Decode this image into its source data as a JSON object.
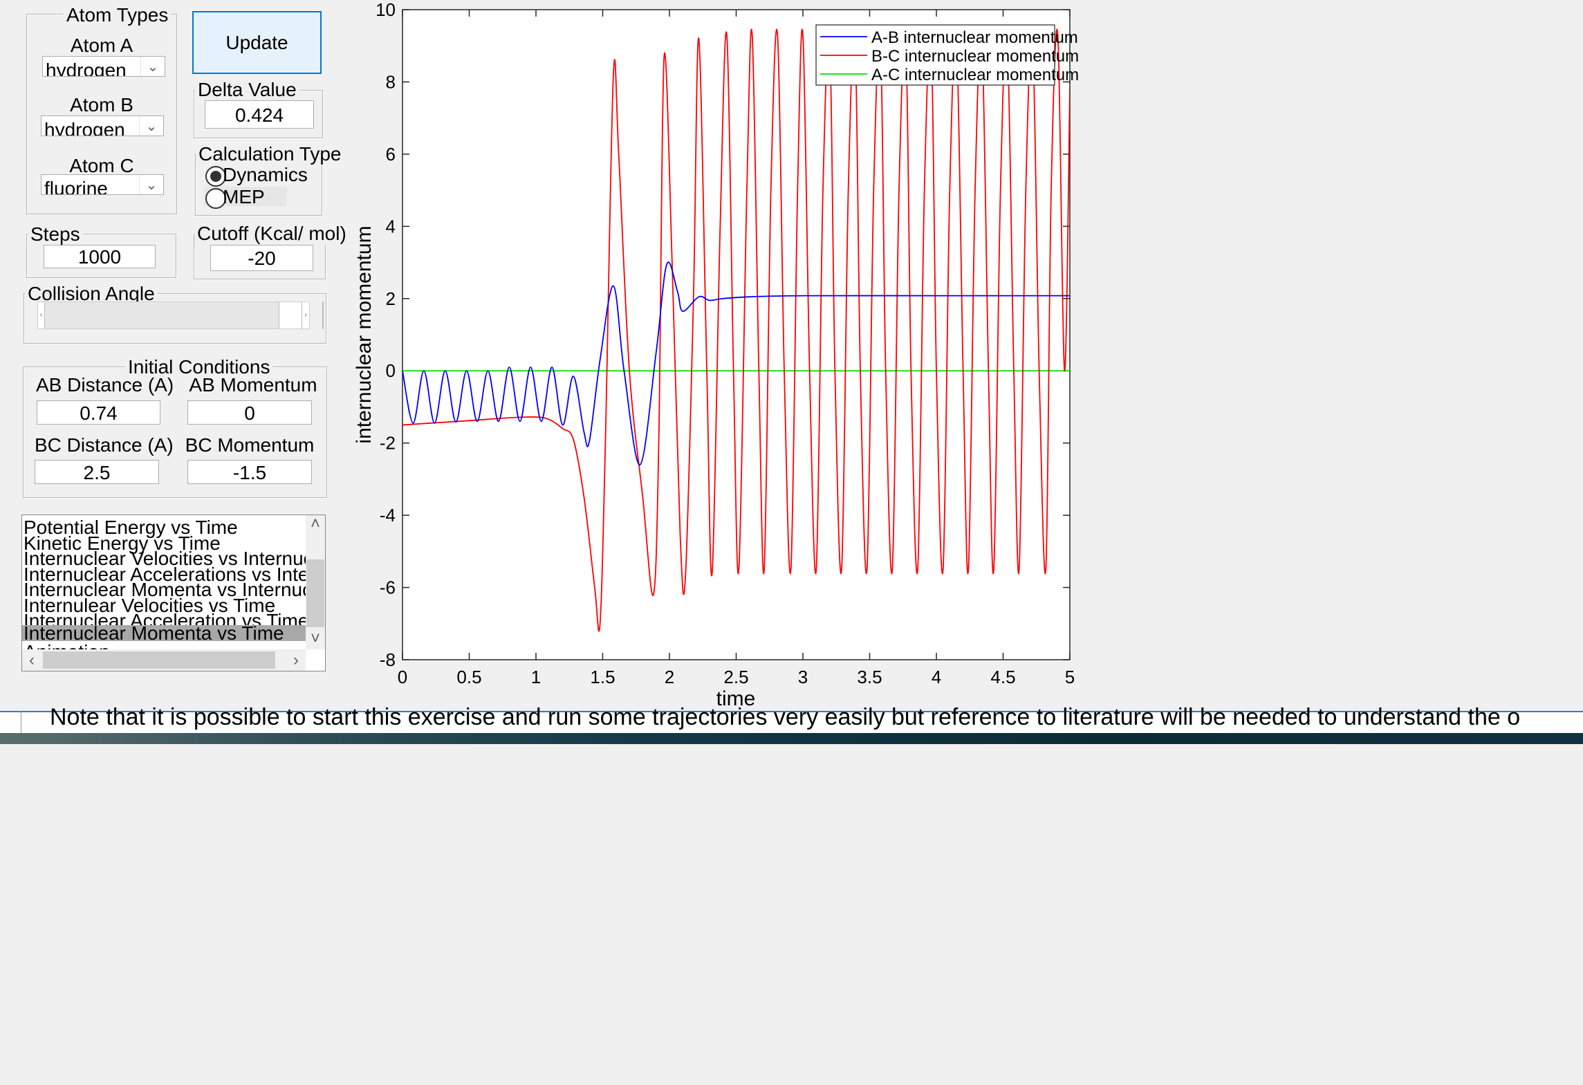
{
  "atom_types": {
    "group_label": "Atom Types",
    "atom_a": {
      "label": "Atom A",
      "value": "hydrogen"
    },
    "atom_b": {
      "label": "Atom B",
      "value": "hydrogen"
    },
    "atom_c": {
      "label": "Atom C",
      "value": "fluorine"
    }
  },
  "update_button": "Update",
  "delta_value": {
    "label": "Delta Value",
    "value": "0.424"
  },
  "calculation_type": {
    "label": "Calculation Type",
    "options": [
      "Dynamics",
      "MEP"
    ],
    "selected": "Dynamics"
  },
  "steps": {
    "label": "Steps",
    "value": "1000"
  },
  "cutoff": {
    "label": "Cutoff (Kcal/ mol)",
    "value": "-20"
  },
  "collision_angle": {
    "label": "Collision Angle"
  },
  "initial_conditions": {
    "label": "Initial Conditions",
    "ab_distance": {
      "label": "AB Distance (A)",
      "value": "0.74"
    },
    "ab_momentum": {
      "label": "AB Momentum",
      "value": "0"
    },
    "bc_distance": {
      "label": "BC Distance (A)",
      "value": "2.5"
    },
    "bc_momentum": {
      "label": "BC Momentum",
      "value": "-1.5"
    }
  },
  "plot_list": {
    "items": [
      "Potential Energy vs Time",
      "Kinetic Energy vs Time",
      "Internuclear Velocities vs Internuclear Distance",
      "Internuclear Accelerations vs Internuclear Distanc",
      "Internuclear Momenta vs Internuclear Distance",
      "Internulear Velocities vs Time",
      "Internuclear Acceleration vs Time",
      "Internuclear Momenta vs Time",
      "Animation"
    ],
    "selected_index": 7
  },
  "note_text": "Note that it is possible to start this exercise and run some trajectories very easily but reference to literature will be needed to understand the o",
  "chart_data": {
    "type": "line",
    "xlabel": "time",
    "ylabel": "internuclear momentum",
    "xlim": [
      0,
      5
    ],
    "ylim": [
      -8,
      10
    ],
    "xticks": [
      "0",
      "0.5",
      "1",
      "1.5",
      "2",
      "2.5",
      "3",
      "3.5",
      "4",
      "4.5",
      "5"
    ],
    "yticks": [
      "-8",
      "-6",
      "-4",
      "-2",
      "0",
      "2",
      "4",
      "6",
      "8",
      "10"
    ],
    "legend_position": "top-right",
    "series": [
      {
        "name": "A-B internuclear momentum",
        "color": "#0000ff",
        "x": [
          0,
          0.08,
          0.16,
          0.24,
          0.32,
          0.4,
          0.48,
          0.56,
          0.64,
          0.72,
          0.8,
          0.88,
          0.96,
          1.04,
          1.12,
          1.2,
          1.28,
          1.36,
          1.4,
          1.48,
          1.58,
          1.66,
          1.78,
          1.9,
          1.98,
          2.06,
          2.1,
          2.22,
          2.3,
          2.4,
          2.6,
          3.0,
          4.0,
          5.0
        ],
        "y": [
          0,
          -1.45,
          0,
          -1.45,
          0,
          -1.42,
          0,
          -1.4,
          0,
          -1.4,
          0.1,
          -1.4,
          0.1,
          -1.4,
          0.1,
          -1.5,
          -0.15,
          -1.7,
          -1.95,
          0.3,
          2.35,
          0.0,
          -2.6,
          0.5,
          2.95,
          2.2,
          1.65,
          2.05,
          1.95,
          2.0,
          2.05,
          2.08,
          2.08,
          2.08
        ]
      },
      {
        "name": "B-C internuclear momentum",
        "color": "#ff0000",
        "x": [
          0,
          0.2,
          0.5,
          0.8,
          1.0,
          1.1,
          1.2,
          1.28,
          1.36,
          1.44,
          1.48,
          1.52,
          1.58,
          1.62,
          1.7,
          1.8,
          1.88,
          1.92,
          1.96,
          2.02,
          2.08,
          2.12,
          2.18,
          2.22,
          2.28,
          2.32,
          2.38,
          2.43,
          2.48,
          2.52,
          2.58,
          2.62,
          2.67,
          2.71,
          2.76,
          2.81,
          2.86,
          2.91,
          2.96,
          3.0,
          3.05,
          3.1,
          3.15,
          3.2,
          3.24,
          3.29,
          3.34,
          3.39,
          3.43,
          3.48,
          3.53,
          3.58,
          3.62,
          3.67,
          3.72,
          3.77,
          3.81,
          3.86,
          3.91,
          3.96,
          4.0,
          4.05,
          4.1,
          4.15,
          4.2,
          4.24,
          4.29,
          4.34,
          4.39,
          4.43,
          4.48,
          4.53,
          4.58,
          4.62,
          4.67,
          4.72,
          4.77,
          4.82,
          4.86,
          4.91,
          4.96,
          5.0
        ],
        "y": [
          -1.5,
          -1.45,
          -1.38,
          -1.3,
          -1.28,
          -1.35,
          -1.6,
          -1.9,
          -3.5,
          -6.0,
          -7.0,
          -2.0,
          8.2,
          6.0,
          0.0,
          -3.5,
          -6.2,
          -2.0,
          8.7,
          3.0,
          -4.5,
          -5.7,
          2.0,
          9.2,
          0.0,
          -5.6,
          4.0,
          9.3,
          0.0,
          -5.5,
          5.0,
          9.3,
          0.0,
          -5.5,
          5.0,
          9.3,
          0.0,
          -5.5,
          5.0,
          9.3,
          0.0,
          -5.5,
          5.0,
          9.3,
          0.0,
          -5.5,
          5.0,
          9.3,
          0.0,
          -5.5,
          5.0,
          9.3,
          0.0,
          -5.5,
          5.0,
          9.3,
          0.0,
          -5.5,
          5.0,
          9.3,
          0.0,
          -5.5,
          5.0,
          9.3,
          0.0,
          -5.5,
          5.0,
          9.3,
          0.0,
          -5.5,
          5.0,
          9.3,
          0.0,
          -5.5,
          5.0,
          9.3,
          0.0,
          -5.5,
          5.0,
          9.3,
          0.0,
          7.8
        ]
      },
      {
        "name": "A-C internuclear momentum",
        "color": "#00dd00",
        "x": [
          0,
          5
        ],
        "y": [
          0,
          0
        ]
      }
    ]
  }
}
